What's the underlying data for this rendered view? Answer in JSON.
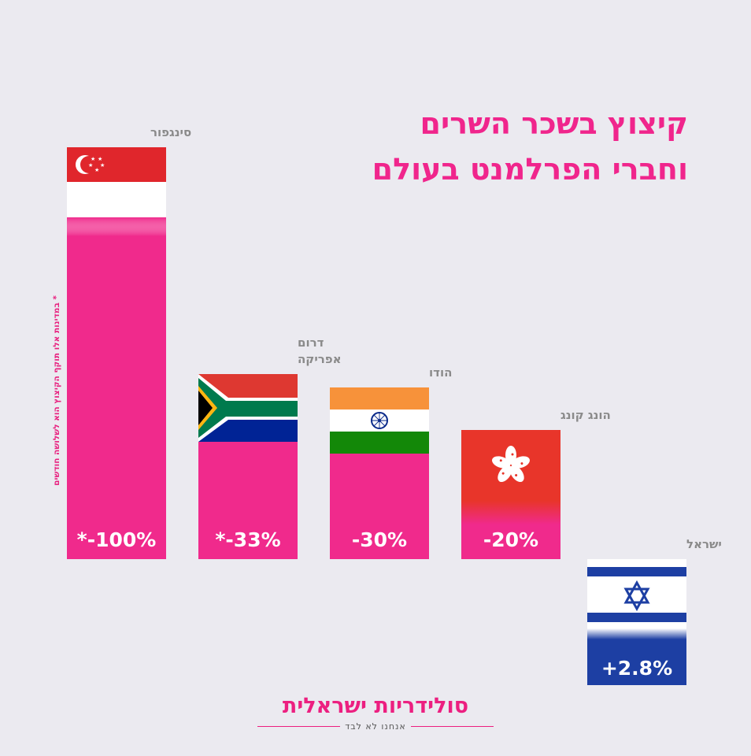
{
  "title": {
    "line1": "קיצוץ בשכר השרים",
    "line2": "וחברי הפרלמנט בעולם"
  },
  "footnote": "* במדינות אלו תוקף הקיצוץ הוא לשלושה חודשים",
  "brand": {
    "name": "סולידריות ישראלית",
    "tagline": "אנחנו לא לבד"
  },
  "colors": {
    "bar_pink": "#f02a8c",
    "israel_blue": "#1d3fa3",
    "title_pink": "#f0258c",
    "label_gray": "#8a8a8a"
  },
  "chart_data": {
    "type": "bar",
    "categories": [
      "סינגפור",
      "דרום אפריקה",
      "הודו",
      "הונג קונג",
      "ישראל"
    ],
    "category_lines": [
      [
        "סינגפור"
      ],
      [
        "דרום",
        "אפריקה"
      ],
      [
        "הודו"
      ],
      [
        "הונג קונג"
      ],
      [
        "ישראל"
      ]
    ],
    "values": [
      -100,
      -33,
      -30,
      -20,
      2.8
    ],
    "labels": [
      "*-100%",
      "*-33%",
      "-30%",
      "-20%",
      "+2.8%"
    ],
    "flags": [
      "singapore-flag",
      "south-africa-flag",
      "india-flag",
      "hong-kong-flag",
      "israel-flag"
    ],
    "title": "קיצוץ בשכר השרים וחברי הפרלמנט בעולם",
    "xlabel": "",
    "ylabel": "",
    "ylim": [
      -100,
      0
    ]
  }
}
